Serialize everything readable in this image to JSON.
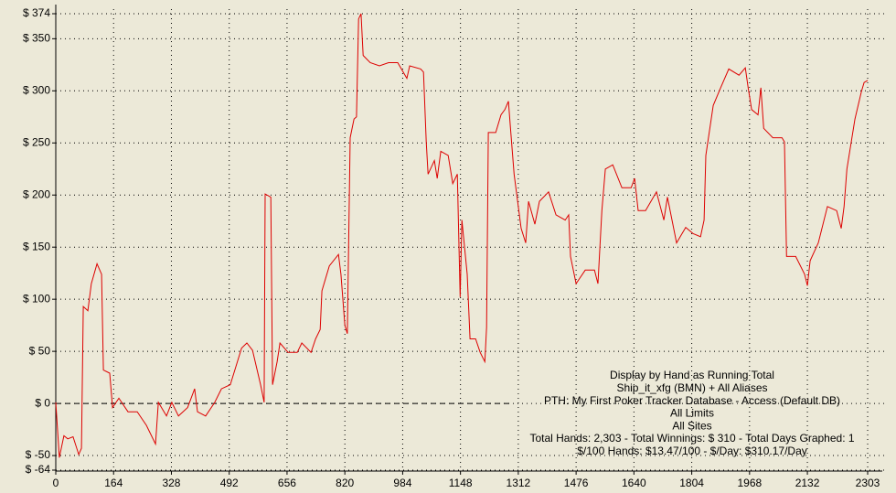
{
  "chart_data": {
    "type": "line",
    "color": "#dd0000",
    "grid": true,
    "zero_line": true,
    "xlim": [
      0,
      2303
    ],
    "ylim": [
      -64,
      374
    ],
    "xticks": [
      0,
      164,
      328,
      492,
      656,
      820,
      984,
      1148,
      1312,
      1476,
      1640,
      1804,
      1968,
      2132,
      2303
    ],
    "yticks": [
      {
        "value": 374,
        "label": "$ 374"
      },
      {
        "value": 350,
        "label": "$ 350"
      },
      {
        "value": 300,
        "label": "$ 300"
      },
      {
        "value": 250,
        "label": "$ 250"
      },
      {
        "value": 200,
        "label": "$ 200"
      },
      {
        "value": 150,
        "label": "$ 150"
      },
      {
        "value": 100,
        "label": "$ 100"
      },
      {
        "value": 50,
        "label": "$ 50"
      },
      {
        "value": 0,
        "label": "$ 0"
      },
      {
        "value": -50,
        "label": "$ -50"
      },
      {
        "value": -64,
        "label": "$ -64"
      }
    ],
    "annotation": [
      "Display by Hand as Running Total",
      "Ship_it_xfg (BMN) + All Aliases",
      "PTH: My First Poker Tracker Database - Access (Default DB)",
      "All Limits",
      "All Sites",
      "Total Hands: 2,303 - Total Winnings: $ 310 - Total Days Graphed: 1",
      "$/100 Hands: $13.47/100 - $/Day: $310.17/Day"
    ],
    "x": [
      0,
      10,
      23,
      34,
      49,
      65,
      73,
      78,
      91,
      101,
      117,
      130,
      135,
      153,
      161,
      179,
      205,
      231,
      257,
      283,
      291,
      314,
      329,
      348,
      374,
      394,
      402,
      425,
      451,
      470,
      495,
      527,
      542,
      558,
      581,
      591,
      594,
      610,
      615,
      628,
      636,
      659,
      685,
      698,
      724,
      737,
      750,
      755,
      776,
      802,
      809,
      820,
      827,
      835,
      846,
      853,
      859,
      866,
      872,
      892,
      918,
      944,
      970,
      996,
      1004,
      1035,
      1043,
      1051,
      1056,
      1074,
      1082,
      1092,
      1113,
      1126,
      1139,
      1147,
      1152,
      1167,
      1175,
      1191,
      1204,
      1217,
      1222,
      1227,
      1248,
      1263,
      1274,
      1284,
      1289,
      1300,
      1320,
      1333,
      1341,
      1359,
      1372,
      1398,
      1419,
      1445,
      1455,
      1460,
      1476,
      1502,
      1528,
      1538,
      1549,
      1559,
      1580,
      1606,
      1632,
      1642,
      1652,
      1673,
      1704,
      1725,
      1735,
      1761,
      1787,
      1808,
      1829,
      1839,
      1844,
      1865,
      1886,
      1909,
      1938,
      1956,
      1964,
      1974,
      1992,
      2000,
      2008,
      2034,
      2060,
      2067,
      2073,
      2099,
      2124,
      2132,
      2140,
      2163,
      2189,
      2215,
      2228,
      2236,
      2244,
      2267,
      2285,
      2293,
      2303
    ],
    "values": [
      1,
      -52,
      -31,
      -34,
      -32,
      -49,
      -43,
      93,
      89,
      115,
      134,
      124,
      32,
      29,
      -4,
      5,
      -8,
      -8,
      -21,
      -39,
      1,
      -12,
      1,
      -12,
      -4,
      14,
      -8,
      -12,
      1,
      14,
      18,
      53,
      58,
      51,
      18,
      1,
      201,
      198,
      18,
      40,
      58,
      49,
      49,
      58,
      49,
      62,
      71,
      108,
      132,
      143,
      124,
      75,
      67,
      255,
      273,
      275,
      369,
      374,
      334,
      327,
      324,
      327,
      327,
      312,
      324,
      321,
      318,
      251,
      220,
      233,
      216,
      242,
      238,
      211,
      220,
      102,
      176,
      124,
      62,
      62,
      49,
      40,
      73,
      260,
      260,
      277,
      282,
      290,
      268,
      220,
      168,
      154,
      194,
      172,
      194,
      203,
      181,
      176,
      181,
      141,
      115,
      128,
      128,
      115,
      185,
      225,
      229,
      207,
      207,
      216,
      185,
      185,
      203,
      176,
      198,
      154,
      169,
      163,
      160,
      176,
      238,
      286,
      303,
      321,
      315,
      322,
      303,
      282,
      277,
      303,
      264,
      255,
      255,
      251,
      141,
      141,
      124,
      113,
      137,
      154,
      189,
      185,
      168,
      189,
      225,
      273,
      299,
      308,
      310
    ]
  }
}
